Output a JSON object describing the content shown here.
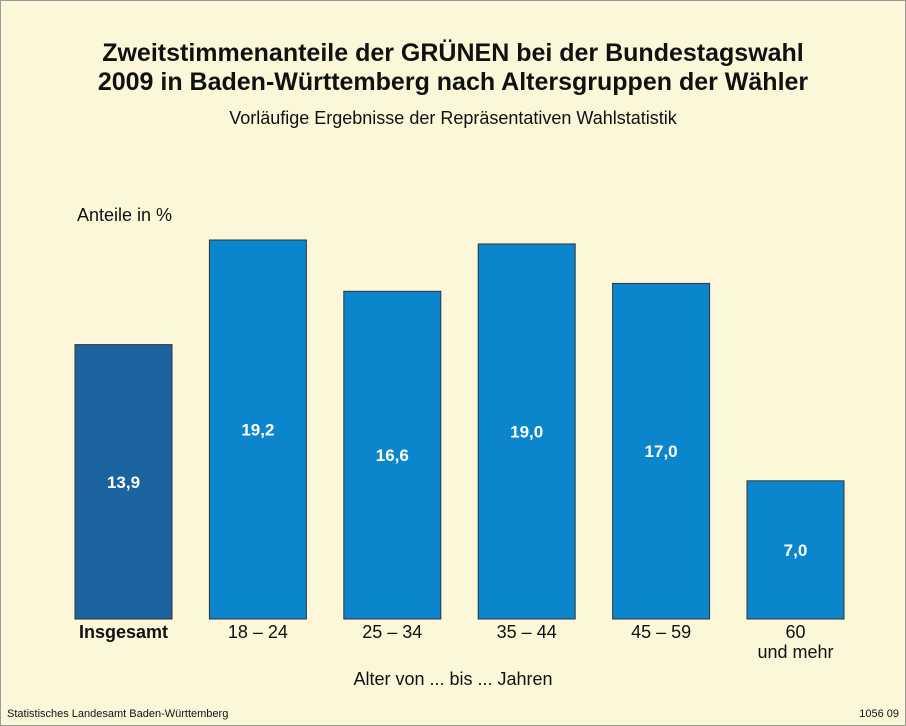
{
  "chart_data": {
    "type": "bar",
    "title": "Zweitstimmenanteile der GRÜNEN bei der Bundestagswahl\n2009 in Baden-Württemberg nach Altersgruppen der Wähler",
    "subtitle": "Vorläufige Ergebnisse der Repräsentativen Wahlstatistik",
    "y_label": "Anteile in %",
    "x_label": "Alter von ... bis ... Jahren",
    "categories": [
      "Insgesamt",
      "18 – 24",
      "25 – 34",
      "35 – 44",
      "45 – 59",
      "60\nund mehr"
    ],
    "values": [
      13.9,
      19.2,
      16.6,
      19.0,
      17.0,
      7.0
    ],
    "value_labels": [
      "13,9",
      "19,2",
      "16,6",
      "19,0",
      "17,0",
      "7,0"
    ],
    "colors": [
      "#1b64a0",
      "#0b86cd",
      "#0b86cd",
      "#0b86cd",
      "#0b86cd",
      "#0b86cd"
    ]
  },
  "footer": {
    "source": "Statistisches Landesamt Baden-Württemberg",
    "code": "1056 09"
  }
}
